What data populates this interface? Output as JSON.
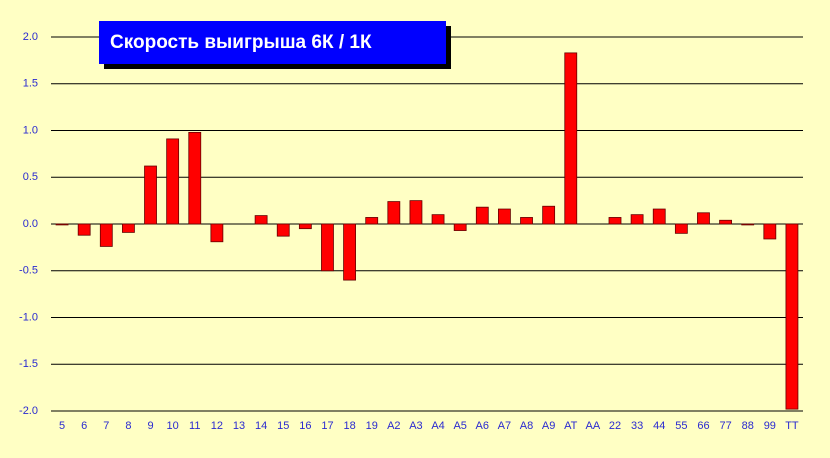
{
  "chart_data": {
    "type": "bar",
    "title": "Скорость выигрыша 6К / 1К",
    "categories": [
      "5",
      "6",
      "7",
      "8",
      "9",
      "10",
      "11",
      "12",
      "13",
      "14",
      "15",
      "16",
      "17",
      "18",
      "19",
      "A2",
      "A3",
      "A4",
      "A5",
      "A6",
      "A7",
      "A8",
      "A9",
      "AT",
      "AA",
      "22",
      "33",
      "44",
      "55",
      "66",
      "77",
      "88",
      "99",
      "TT"
    ],
    "values": [
      -0.01,
      -0.12,
      -0.24,
      -0.09,
      0.62,
      0.91,
      0.98,
      -0.19,
      0,
      0.09,
      -0.13,
      -0.05,
      -0.5,
      -0.6,
      0.07,
      0.24,
      0.25,
      0.1,
      -0.07,
      0.18,
      0.16,
      0.07,
      0.19,
      1.83,
      0,
      0.07,
      0.1,
      0.16,
      -0.1,
      0.12,
      0.04,
      -0.01,
      -0.16,
      -1.98
    ],
    "color": "#ff0000",
    "ylim": [
      -2.0,
      2.0
    ],
    "yticks": [
      {
        "value": -2.0,
        "label": "-2.0"
      },
      -1.5,
      {
        "value": -1.0,
        "label": "-1.0"
      },
      -0.5,
      {
        "value": 0.0,
        "label": "0.0"
      },
      0.5,
      {
        "value": 1.0,
        "label": "1.0"
      },
      1.5,
      {
        "value": 2.0,
        "label": "2.0"
      }
    ],
    "grid": true
  }
}
